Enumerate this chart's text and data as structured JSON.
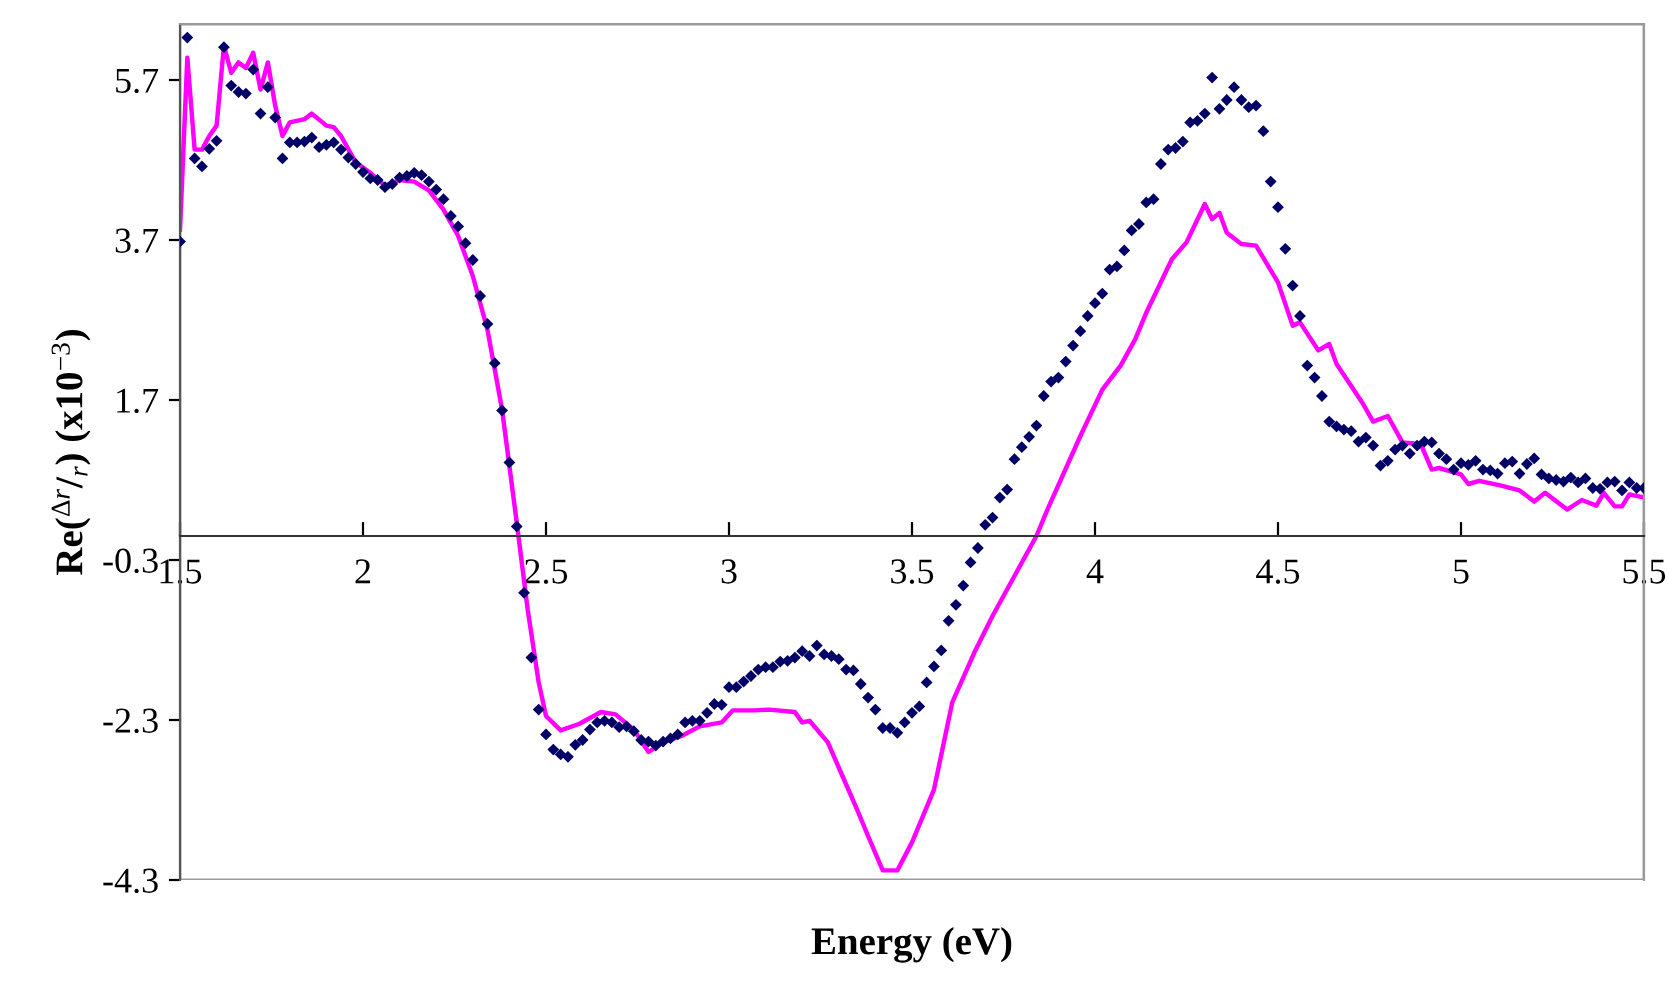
{
  "chart_data": {
    "type": "line",
    "xlabel": "Energy (eV)",
    "ylabel": "Re($^{Δr}$/$_{r}$) (x10$^{−3}$)",
    "xlim": [
      1.5,
      5.5
    ],
    "xticks": [
      1.5,
      2,
      2.5,
      3,
      3.5,
      4,
      4.5,
      5,
      5.5
    ],
    "ylim": [
      -4.3,
      6.4
    ],
    "yticks": [
      {
        "value": -4.3,
        "label": "-4.3"
      },
      {
        "value": -2.3,
        "label": "-2.3"
      },
      {
        "value": -0.3,
        "label": "-0.3"
      },
      1.7,
      3.7,
      5.7
    ],
    "series": [
      {
        "type": "scatter",
        "color": "#000066",
        "marker": "diamond",
        "x": [
          1.5,
          1.52,
          1.54,
          1.56,
          1.58,
          1.6,
          1.62,
          1.64,
          1.66,
          1.68,
          1.7,
          1.72,
          1.74,
          1.76,
          1.78,
          1.8,
          1.82,
          1.84,
          1.86,
          1.88,
          1.9,
          1.92,
          1.94,
          1.96,
          1.98,
          2.0,
          2.02,
          2.04,
          2.06,
          2.08,
          2.1,
          2.12,
          2.14,
          2.16,
          2.18,
          2.2,
          2.22,
          2.24,
          2.26,
          2.28,
          2.3,
          2.32,
          2.34,
          2.36,
          2.38,
          2.4,
          2.42,
          2.44,
          2.46,
          2.48,
          2.5,
          2.52,
          2.54,
          2.56,
          2.58,
          2.6,
          2.62,
          2.64,
          2.66,
          2.68,
          2.7,
          2.72,
          2.74,
          2.76,
          2.78,
          2.8,
          2.82,
          2.84,
          2.86,
          2.88,
          2.9,
          2.92,
          2.94,
          2.96,
          2.98,
          3.0,
          3.02,
          3.04,
          3.06,
          3.08,
          3.1,
          3.12,
          3.14,
          3.16,
          3.18,
          3.2,
          3.22,
          3.24,
          3.26,
          3.28,
          3.3,
          3.32,
          3.34,
          3.36,
          3.38,
          3.4,
          3.42,
          3.44,
          3.46,
          3.48,
          3.5,
          3.52,
          3.54,
          3.56,
          3.58,
          3.6,
          3.62,
          3.64,
          3.66,
          3.68,
          3.7,
          3.72,
          3.74,
          3.76,
          3.78,
          3.8,
          3.82,
          3.84,
          3.86,
          3.88,
          3.9,
          3.92,
          3.94,
          3.96,
          3.98,
          4.0,
          4.02,
          4.04,
          4.06,
          4.08,
          4.1,
          4.12,
          4.14,
          4.16,
          4.18,
          4.2,
          4.22,
          4.24,
          4.26,
          4.28,
          4.3,
          4.32,
          4.34,
          4.36,
          4.38,
          4.4,
          4.42,
          4.44,
          4.46,
          4.48,
          4.5,
          4.52,
          4.54,
          4.56,
          4.58,
          4.6,
          4.62,
          4.64,
          4.66,
          4.68,
          4.7,
          4.72,
          4.74,
          4.76,
          4.78,
          4.8,
          4.82,
          4.84,
          4.86,
          4.88,
          4.9,
          4.92,
          4.94,
          4.96,
          4.98,
          5.0,
          5.02,
          5.04,
          5.06,
          5.08,
          5.1,
          5.12,
          5.14,
          5.16,
          5.18,
          5.2,
          5.22,
          5.24,
          5.26,
          5.28,
          5.3,
          5.32,
          5.34,
          5.36,
          5.38,
          5.4,
          5.42,
          5.44,
          5.46,
          5.48,
          5.5
        ],
        "values": [
          3.68,
          6.23,
          4.72,
          4.62,
          4.84,
          4.94,
          6.11,
          5.63,
          5.55,
          5.53,
          5.83,
          5.28,
          5.61,
          5.23,
          4.72,
          4.92,
          4.92,
          4.93,
          4.98,
          4.86,
          4.89,
          4.92,
          4.83,
          4.73,
          4.65,
          4.55,
          4.47,
          4.45,
          4.36,
          4.4,
          4.48,
          4.5,
          4.54,
          4.51,
          4.43,
          4.33,
          4.21,
          4.0,
          3.87,
          3.66,
          3.45,
          3.0,
          2.65,
          2.16,
          1.57,
          0.92,
          0.12,
          -0.71,
          -1.52,
          -2.17,
          -2.48,
          -2.67,
          -2.73,
          -2.76,
          -2.61,
          -2.55,
          -2.42,
          -2.33,
          -2.31,
          -2.33,
          -2.39,
          -2.38,
          -2.44,
          -2.55,
          -2.57,
          -2.62,
          -2.57,
          -2.53,
          -2.48,
          -2.33,
          -2.31,
          -2.31,
          -2.21,
          -2.1,
          -2.11,
          -1.89,
          -1.89,
          -1.82,
          -1.75,
          -1.67,
          -1.64,
          -1.64,
          -1.57,
          -1.56,
          -1.52,
          -1.44,
          -1.5,
          -1.37,
          -1.48,
          -1.5,
          -1.54,
          -1.67,
          -1.68,
          -1.85,
          -2.02,
          -2.17,
          -2.4,
          -2.4,
          -2.46,
          -2.33,
          -2.21,
          -2.13,
          -1.83,
          -1.63,
          -1.43,
          -1.06,
          -0.86,
          -0.62,
          -0.33,
          -0.15,
          0.14,
          0.23,
          0.48,
          0.58,
          0.96,
          1.11,
          1.24,
          1.38,
          1.75,
          1.93,
          1.98,
          2.18,
          2.38,
          2.56,
          2.75,
          2.91,
          3.03,
          3.33,
          3.37,
          3.57,
          3.82,
          3.9,
          4.17,
          4.21,
          4.65,
          4.83,
          4.85,
          4.93,
          5.17,
          5.19,
          5.28,
          5.73,
          5.34,
          5.45,
          5.61,
          5.45,
          5.36,
          5.38,
          5.06,
          4.43,
          4.11,
          3.59,
          3.13,
          2.75,
          2.13,
          1.98,
          1.75,
          1.43,
          1.37,
          1.33,
          1.31,
          1.18,
          1.23,
          1.13,
          0.88,
          0.94,
          1.08,
          1.13,
          1.03,
          1.13,
          1.18,
          1.17,
          1.03,
          0.96,
          0.83,
          0.91,
          0.89,
          0.94,
          0.83,
          0.82,
          0.78,
          0.91,
          0.93,
          0.78,
          0.9,
          0.97,
          0.77,
          0.72,
          0.7,
          0.68,
          0.73,
          0.67,
          0.72,
          0.6,
          0.59,
          0.67,
          0.68,
          0.57,
          0.67,
          0.6,
          0.6
        ]
      },
      {
        "type": "line",
        "color": "#ff00ff",
        "line_style": "solid",
        "x": [
          1.5,
          1.52,
          1.54,
          1.56,
          1.58,
          1.6,
          1.62,
          1.64,
          1.66,
          1.68,
          1.7,
          1.72,
          1.74,
          1.76,
          1.78,
          1.8,
          1.84,
          1.86,
          1.9,
          1.92,
          1.94,
          1.98,
          2.02,
          2.06,
          2.1,
          2.14,
          2.18,
          2.22,
          2.26,
          2.3,
          2.34,
          2.38,
          2.42,
          2.45,
          2.48,
          2.5,
          2.54,
          2.59,
          2.65,
          2.69,
          2.74,
          2.78,
          2.82,
          2.87,
          2.92,
          2.98,
          3.01,
          3.07,
          3.11,
          3.18,
          3.2,
          3.22,
          3.27,
          3.31,
          3.35,
          3.38,
          3.42,
          3.46,
          3.5,
          3.56,
          3.61,
          3.67,
          3.72,
          3.78,
          3.84,
          3.87,
          3.96,
          4.02,
          4.07,
          4.11,
          4.14,
          4.21,
          4.25,
          4.3,
          4.32,
          4.34,
          4.36,
          4.4,
          4.44,
          4.5,
          4.54,
          4.56,
          4.61,
          4.64,
          4.66,
          4.73,
          4.76,
          4.8,
          4.84,
          4.89,
          4.92,
          4.94,
          5.0,
          5.02,
          5.05,
          5.11,
          5.16,
          5.2,
          5.23,
          5.29,
          5.33,
          5.37,
          5.39,
          5.42,
          5.44,
          5.46,
          5.5
        ],
        "values": [
          3.83,
          5.98,
          4.83,
          4.83,
          5.0,
          5.13,
          6.13,
          5.79,
          5.92,
          5.85,
          6.04,
          5.58,
          5.92,
          5.38,
          5.0,
          5.17,
          5.21,
          5.28,
          5.13,
          5.11,
          5.0,
          4.67,
          4.54,
          4.38,
          4.45,
          4.43,
          4.32,
          4.08,
          3.75,
          3.25,
          2.58,
          1.58,
          0.17,
          -0.92,
          -1.83,
          -2.25,
          -2.43,
          -2.35,
          -2.2,
          -2.23,
          -2.42,
          -2.7,
          -2.58,
          -2.5,
          -2.38,
          -2.33,
          -2.18,
          -2.18,
          -2.17,
          -2.2,
          -2.33,
          -2.31,
          -2.58,
          -3.0,
          -3.42,
          -3.75,
          -4.18,
          -4.18,
          -3.83,
          -3.17,
          -2.08,
          -1.46,
          -1.0,
          -0.5,
          0.0,
          0.33,
          1.25,
          1.83,
          2.13,
          2.46,
          2.79,
          3.46,
          3.67,
          4.15,
          3.96,
          4.04,
          3.79,
          3.65,
          3.63,
          3.17,
          2.63,
          2.67,
          2.32,
          2.4,
          2.15,
          1.67,
          1.43,
          1.5,
          1.17,
          1.15,
          0.83,
          0.85,
          0.77,
          0.65,
          0.69,
          0.63,
          0.57,
          0.43,
          0.54,
          0.33,
          0.45,
          0.38,
          0.54,
          0.37,
          0.37,
          0.52,
          0.48
        ]
      }
    ]
  }
}
